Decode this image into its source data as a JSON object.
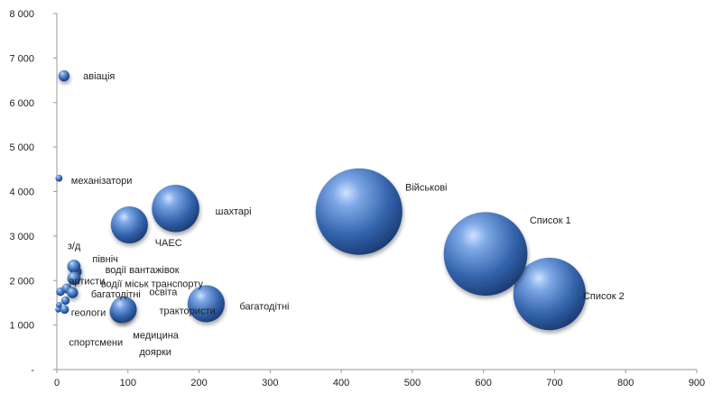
{
  "chart_data": {
    "type": "bubble",
    "title": "",
    "xlabel": "",
    "ylabel": "",
    "xlim": [
      0,
      900
    ],
    "ylim": [
      0,
      8000
    ],
    "x_ticks": [
      0,
      100,
      200,
      300,
      400,
      500,
      600,
      700,
      800,
      900
    ],
    "y_ticks": [
      0,
      1000,
      2000,
      3000,
      4000,
      5000,
      6000,
      7000,
      8000
    ],
    "y_tick_labels": [
      "-",
      "1 000",
      "2 000",
      "3 000",
      "4 000",
      "5 000",
      "6 000",
      "7 000",
      "8 000"
    ],
    "grid": false,
    "bubble_color": "#3a6fb8",
    "points": [
      {
        "label": "авіація",
        "x": 10,
        "y": 6600,
        "size": 10
      },
      {
        "label": "механізатори",
        "x": 3,
        "y": 4300,
        "size": 4
      },
      {
        "label": "Військові",
        "x": 425,
        "y": 3550,
        "size": 600
      },
      {
        "label": "Список 1",
        "x": 603,
        "y": 2600,
        "size": 560
      },
      {
        "label": "Список 2",
        "x": 693,
        "y": 1700,
        "size": 420
      },
      {
        "label": "шахтарі",
        "x": 167,
        "y": 3620,
        "size": 180
      },
      {
        "label": "ЧАЕС",
        "x": 102,
        "y": 3250,
        "size": 110
      },
      {
        "label": "з/д",
        "x": 24,
        "y": 2320,
        "size": 14
      },
      {
        "label": "північ",
        "x": 27,
        "y": 2200,
        "size": 10
      },
      {
        "label": "водії вантажівок",
        "x": 24,
        "y": 2050,
        "size": 14
      },
      {
        "label": "артисти",
        "x": 14,
        "y": 1820,
        "size": 8
      },
      {
        "label": "водії міськ транспорту",
        "x": 22,
        "y": 1730,
        "size": 10
      },
      {
        "label": "багатодітні",
        "x": 5,
        "y": 1750,
        "size": 6
      },
      {
        "label": "освіта",
        "x": 12,
        "y": 1550,
        "size": 6
      },
      {
        "label": "багатодітні",
        "x": 210,
        "y": 1480,
        "size": 110
      },
      {
        "label": "трактористи",
        "x": 94,
        "y": 1350,
        "size": 55
      },
      {
        "label": "геологи",
        "x": 11,
        "y": 1350,
        "size": 6
      },
      {
        "label": "спортсмени",
        "x": 2,
        "y": 1350,
        "size": 3
      },
      {
        "label": "медицина",
        "x": 90,
        "y": 1300,
        "size": 40
      },
      {
        "label": "доярки",
        "x": 3,
        "y": 1450,
        "size": 3
      }
    ],
    "labels": [
      {
        "text": "авіація",
        "x": 37,
        "y": 6600
      },
      {
        "text": "механізатори",
        "x": 20,
        "y": 4250
      },
      {
        "text": "Військові",
        "x": 490,
        "y": 4100
      },
      {
        "text": "Список 1",
        "x": 665,
        "y": 3360
      },
      {
        "text": "Список 2",
        "x": 740,
        "y": 1660
      },
      {
        "text": "шахтарі",
        "x": 223,
        "y": 3560
      },
      {
        "text": "ЧАЕС",
        "x": 138,
        "y": 2860
      },
      {
        "text": "з/д",
        "x": 15,
        "y": 2780
      },
      {
        "text": "північ",
        "x": 50,
        "y": 2490
      },
      {
        "text": "водії вантажівок",
        "x": 68,
        "y": 2250
      },
      {
        "text": "артисти",
        "x": 17,
        "y": 2000
      },
      {
        "text": "водії міськ транспорту",
        "x": 62,
        "y": 1930
      },
      {
        "text": "багатодітні",
        "x": 48,
        "y": 1700
      },
      {
        "text": "освіта",
        "x": 130,
        "y": 1750
      },
      {
        "text": "багатодітні",
        "x": 257,
        "y": 1430
      },
      {
        "text": "трактористи",
        "x": 144,
        "y": 1330
      },
      {
        "text": "геологи",
        "x": 20,
        "y": 1290
      },
      {
        "text": "спортсмени",
        "x": 17,
        "y": 620
      },
      {
        "text": "медицина",
        "x": 107,
        "y": 780
      },
      {
        "text": "доярки",
        "x": 116,
        "y": 410
      }
    ]
  }
}
